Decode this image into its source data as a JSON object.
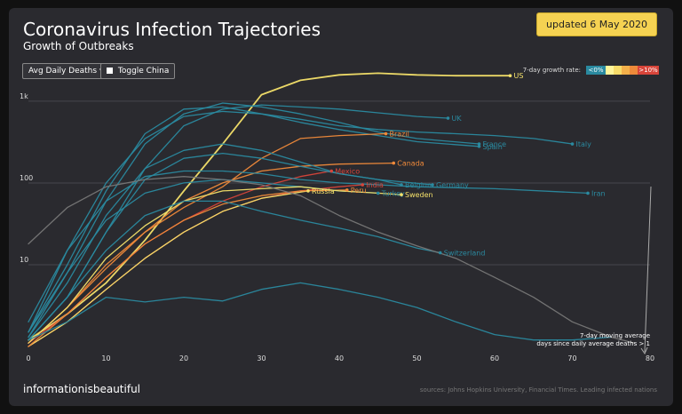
{
  "title": "Coronavirus Infection Trajectories",
  "subtitle": "Growth of Outbreaks",
  "badge": "updated 6 May 2020",
  "controls": {
    "metric_select": "Avg Daily Deaths",
    "toggle_china": "Toggle China"
  },
  "growth_legend": {
    "label": "7-day growth rate:",
    "low_label": "<0%",
    "high_label": ">10%",
    "colors": [
      "#2a8aa0",
      "#fff59a",
      "#f7dc6a",
      "#f3b04a",
      "#ee8a3a",
      "#d8453a"
    ]
  },
  "brand": "informationisbeautiful",
  "source": "sources: Johns Hopkins University, Financial Times. Leading infected nations",
  "annotation": [
    "7-day moving average",
    "days since daily average deaths > 1"
  ],
  "chart_data": {
    "type": "line",
    "x_range": [
      0,
      80
    ],
    "y_scale": "log",
    "y_range": [
      1,
      3000
    ],
    "x_ticks": [
      0,
      10,
      20,
      30,
      40,
      50,
      60,
      70,
      80
    ],
    "y_ticks": [
      {
        "value": 10,
        "label": "10"
      },
      {
        "value": 100,
        "label": "100"
      },
      {
        "value": 1000,
        "label": "1k"
      }
    ],
    "grid": true,
    "series": [
      {
        "name": "US",
        "color": "#f5e16a",
        "points": [
          [
            0,
            1.2
          ],
          [
            5,
            2.5
          ],
          [
            10,
            6
          ],
          [
            15,
            20
          ],
          [
            20,
            80
          ],
          [
            25,
            300
          ],
          [
            30,
            1200
          ],
          [
            35,
            1800
          ],
          [
            40,
            2100
          ],
          [
            45,
            2200
          ],
          [
            50,
            2100
          ],
          [
            55,
            2050
          ],
          [
            60,
            2050
          ],
          [
            62,
            2050
          ]
        ]
      },
      {
        "name": "UK",
        "color": "#2a8aa0",
        "points": [
          [
            0,
            1.2
          ],
          [
            5,
            4
          ],
          [
            10,
            25
          ],
          [
            15,
            150
          ],
          [
            20,
            500
          ],
          [
            25,
            800
          ],
          [
            30,
            900
          ],
          [
            35,
            850
          ],
          [
            40,
            800
          ],
          [
            45,
            720
          ],
          [
            50,
            650
          ],
          [
            54,
            620
          ]
        ]
      },
      {
        "name": "Spain",
        "color": "#2a8aa0",
        "points": [
          [
            0,
            1.5
          ],
          [
            5,
            10
          ],
          [
            10,
            80
          ],
          [
            15,
            400
          ],
          [
            20,
            800
          ],
          [
            25,
            850
          ],
          [
            30,
            700
          ],
          [
            35,
            550
          ],
          [
            40,
            450
          ],
          [
            45,
            380
          ],
          [
            50,
            320
          ],
          [
            58,
            280
          ]
        ]
      },
      {
        "name": "France",
        "color": "#2a8aa0",
        "points": [
          [
            0,
            1.3
          ],
          [
            5,
            8
          ],
          [
            10,
            60
          ],
          [
            15,
            300
          ],
          [
            20,
            700
          ],
          [
            25,
            950
          ],
          [
            30,
            850
          ],
          [
            35,
            700
          ],
          [
            40,
            550
          ],
          [
            45,
            420
          ],
          [
            50,
            350
          ],
          [
            58,
            300
          ]
        ]
      },
      {
        "name": "Italy",
        "color": "#2a8aa0",
        "points": [
          [
            0,
            2
          ],
          [
            5,
            15
          ],
          [
            10,
            100
          ],
          [
            15,
            350
          ],
          [
            20,
            650
          ],
          [
            25,
            750
          ],
          [
            30,
            700
          ],
          [
            35,
            600
          ],
          [
            40,
            500
          ],
          [
            45,
            450
          ],
          [
            50,
            420
          ],
          [
            55,
            400
          ],
          [
            60,
            380
          ],
          [
            65,
            350
          ],
          [
            70,
            300
          ]
        ]
      },
      {
        "name": "Brazil",
        "color": "#f08a3a",
        "points": [
          [
            0,
            1.1
          ],
          [
            5,
            3
          ],
          [
            10,
            10
          ],
          [
            15,
            25
          ],
          [
            20,
            50
          ],
          [
            25,
            90
          ],
          [
            30,
            200
          ],
          [
            35,
            350
          ],
          [
            40,
            380
          ],
          [
            46,
            400
          ]
        ]
      },
      {
        "name": "Canada",
        "color": "#f08a3a",
        "points": [
          [
            0,
            1.1
          ],
          [
            5,
            3
          ],
          [
            10,
            9
          ],
          [
            15,
            25
          ],
          [
            20,
            60
          ],
          [
            25,
            100
          ],
          [
            30,
            140
          ],
          [
            35,
            160
          ],
          [
            40,
            170
          ],
          [
            47,
            175
          ]
        ]
      },
      {
        "name": "Mexico",
        "color": "#d8453a",
        "points": [
          [
            0,
            1.1
          ],
          [
            5,
            2.5
          ],
          [
            10,
            7
          ],
          [
            15,
            18
          ],
          [
            20,
            35
          ],
          [
            25,
            60
          ],
          [
            30,
            90
          ],
          [
            35,
            120
          ],
          [
            39,
            140
          ]
        ]
      },
      {
        "name": "India",
        "color": "#d8453a",
        "points": [
          [
            0,
            1
          ],
          [
            5,
            2
          ],
          [
            10,
            5
          ],
          [
            15,
            12
          ],
          [
            20,
            25
          ],
          [
            25,
            45
          ],
          [
            30,
            65
          ],
          [
            35,
            80
          ],
          [
            40,
            90
          ],
          [
            43,
            95
          ]
        ]
      },
      {
        "name": "Belgium",
        "color": "#2a8aa0",
        "points": [
          [
            0,
            1.3
          ],
          [
            5,
            6
          ],
          [
            10,
            40
          ],
          [
            15,
            150
          ],
          [
            20,
            250
          ],
          [
            25,
            300
          ],
          [
            30,
            250
          ],
          [
            35,
            180
          ],
          [
            40,
            130
          ],
          [
            45,
            110
          ],
          [
            48,
            95
          ]
        ]
      },
      {
        "name": "Germany",
        "color": "#2a8aa0",
        "points": [
          [
            0,
            1.2
          ],
          [
            5,
            4
          ],
          [
            10,
            25
          ],
          [
            15,
            110
          ],
          [
            20,
            200
          ],
          [
            25,
            230
          ],
          [
            30,
            200
          ],
          [
            35,
            160
          ],
          [
            40,
            130
          ],
          [
            45,
            110
          ],
          [
            52,
            95
          ]
        ]
      },
      {
        "name": "Iran",
        "color": "#2a8aa0",
        "points": [
          [
            0,
            1.5
          ],
          [
            5,
            15
          ],
          [
            10,
            60
          ],
          [
            15,
            120
          ],
          [
            20,
            140
          ],
          [
            25,
            140
          ],
          [
            30,
            130
          ],
          [
            35,
            110
          ],
          [
            40,
            100
          ],
          [
            45,
            95
          ],
          [
            50,
            90
          ],
          [
            60,
            85
          ],
          [
            72,
            75
          ]
        ]
      },
      {
        "name": "Russia",
        "color": "#f5e16a",
        "points": [
          [
            0,
            1
          ],
          [
            5,
            2
          ],
          [
            10,
            5
          ],
          [
            15,
            12
          ],
          [
            20,
            25
          ],
          [
            25,
            45
          ],
          [
            30,
            65
          ],
          [
            36,
            80
          ]
        ]
      },
      {
        "name": "Peru",
        "color": "#f08a3a",
        "points": [
          [
            0,
            1
          ],
          [
            5,
            2.5
          ],
          [
            10,
            7
          ],
          [
            15,
            18
          ],
          [
            20,
            35
          ],
          [
            25,
            55
          ],
          [
            30,
            70
          ],
          [
            35,
            80
          ],
          [
            41,
            82
          ]
        ]
      },
      {
        "name": "Turkey",
        "color": "#2a8aa0",
        "points": [
          [
            0,
            1.5
          ],
          [
            5,
            8
          ],
          [
            10,
            35
          ],
          [
            15,
            75
          ],
          [
            20,
            100
          ],
          [
            25,
            110
          ],
          [
            30,
            100
          ],
          [
            35,
            90
          ],
          [
            40,
            80
          ],
          [
            45,
            75
          ]
        ]
      },
      {
        "name": "Sweden",
        "color": "#f5e16a",
        "points": [
          [
            0,
            1.1
          ],
          [
            5,
            3
          ],
          [
            10,
            12
          ],
          [
            15,
            30
          ],
          [
            20,
            60
          ],
          [
            25,
            80
          ],
          [
            30,
            85
          ],
          [
            35,
            90
          ],
          [
            40,
            80
          ],
          [
            45,
            75
          ],
          [
            48,
            72
          ]
        ]
      },
      {
        "name": "Switzerland",
        "color": "#2a8aa0",
        "points": [
          [
            0,
            1.2
          ],
          [
            5,
            4
          ],
          [
            10,
            15
          ],
          [
            15,
            40
          ],
          [
            20,
            60
          ],
          [
            25,
            60
          ],
          [
            30,
            45
          ],
          [
            35,
            35
          ],
          [
            40,
            28
          ],
          [
            45,
            22
          ],
          [
            50,
            16
          ],
          [
            53,
            14
          ]
        ]
      },
      {
        "name": "",
        "color": "#2a8aa0",
        "points": [
          [
            0,
            1.2
          ],
          [
            5,
            2
          ],
          [
            10,
            4
          ],
          [
            15,
            3.5
          ],
          [
            20,
            4
          ],
          [
            25,
            3.6
          ],
          [
            30,
            5
          ],
          [
            35,
            6
          ],
          [
            40,
            5
          ],
          [
            45,
            4
          ],
          [
            50,
            3
          ],
          [
            55,
            2
          ],
          [
            60,
            1.4
          ],
          [
            65,
            1.2
          ],
          [
            70,
            1.2
          ],
          [
            75,
            1.3
          ]
        ]
      },
      {
        "name": "",
        "color": "#777777",
        "points": [
          [
            0,
            18
          ],
          [
            5,
            50
          ],
          [
            10,
            90
          ],
          [
            15,
            110
          ],
          [
            20,
            120
          ],
          [
            25,
            110
          ],
          [
            30,
            95
          ],
          [
            35,
            70
          ],
          [
            40,
            40
          ],
          [
            45,
            25
          ],
          [
            50,
            17
          ],
          [
            55,
            12
          ],
          [
            60,
            7
          ],
          [
            65,
            4
          ],
          [
            70,
            2
          ],
          [
            75,
            1.3
          ],
          [
            78,
            1.1
          ]
        ]
      }
    ]
  }
}
